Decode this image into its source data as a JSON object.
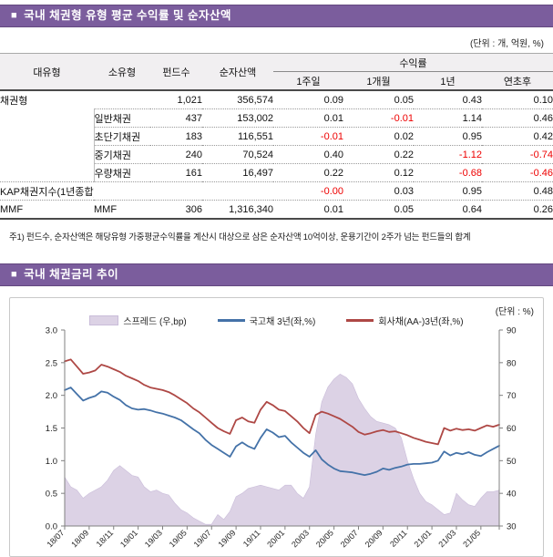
{
  "colors": {
    "banner_purple": "#7B5D9D",
    "negative_red": "#EE0000",
    "header_gray": "#F1EFF1",
    "area_fill": "#DCD2E5",
    "area_edge": "#C9BCD9",
    "line_blue": "#4472A8",
    "line_red": "#AE4845"
  },
  "section1": {
    "bullet": "■",
    "title": "국내 채권형 유형 평균 수익률 및 순자산액",
    "unit_label": "(단위 : 개, 억원, %)",
    "table": {
      "headers": {
        "col1": "대유형",
        "col2": "소유형",
        "col3": "펀드수",
        "col4": "순자산액",
        "group": "수익률",
        "sub": [
          "1주일",
          "1개월",
          "1년",
          "연초후"
        ]
      },
      "rows": [
        {
          "type": "채권형",
          "subtype": "",
          "funds": "1,021",
          "assets": "356,574",
          "returns": [
            "0.09",
            "0.05",
            "0.43",
            "0.10"
          ],
          "sep": "none",
          "indent": false
        },
        {
          "type": "",
          "subtype": "일반채권",
          "funds": "437",
          "assets": "153,002",
          "returns": [
            "0.01",
            "-0.01",
            "1.14",
            "0.46"
          ],
          "sep": "partial",
          "indent": true
        },
        {
          "type": "",
          "subtype": "초단기채권",
          "funds": "183",
          "assets": "116,551",
          "returns": [
            "-0.01",
            "0.02",
            "0.95",
            "0.42"
          ],
          "sep": "partial",
          "indent": true
        },
        {
          "type": "",
          "subtype": "중기채권",
          "funds": "240",
          "assets": "70,524",
          "returns": [
            "0.40",
            "0.22",
            "-1.12",
            "-0.74"
          ],
          "sep": "partial",
          "indent": true
        },
        {
          "type": "",
          "subtype": "우량채권",
          "funds": "161",
          "assets": "16,497",
          "returns": [
            "0.22",
            "0.12",
            "-0.68",
            "-0.46"
          ],
          "sep": "partial",
          "indent": true
        },
        {
          "type": "KAP채권지수(1년종합)",
          "subtype": "",
          "funds": "",
          "assets": "",
          "returns": [
            "-0.00",
            "0.03",
            "0.95",
            "0.48"
          ],
          "sep": "full",
          "indent": false
        },
        {
          "type": "MMF",
          "subtype": "MMF",
          "funds": "306",
          "assets": "1,316,340",
          "returns": [
            "0.01",
            "0.05",
            "0.64",
            "0.26"
          ],
          "sep": "full",
          "indent": false
        }
      ],
      "footnote": "주1) 펀드수, 순자산액은 해당유형 가중평균수익률을 계산시 대상으로 삼은 순자산액 10억이상, 운용기간이 2주가 넘는 펀드들의 합계"
    }
  },
  "section2": {
    "bullet": "■",
    "title": "국내 채권금리 추이",
    "unit_label": "(단위 : %)"
  },
  "chart_data": {
    "type": "line",
    "title": "국내 채권금리 추이",
    "left_axis": {
      "label": "%",
      "min": 0,
      "max": 3,
      "step": 0.5,
      "tick_labels": [
        "0.0",
        "0.5",
        "1.0",
        "1.5",
        "2.0",
        "2.5",
        "3.0"
      ]
    },
    "right_axis": {
      "label": "bp",
      "min": 30,
      "max": 90,
      "step": 10,
      "tick_labels": [
        "30",
        "40",
        "50",
        "60",
        "70",
        "80",
        "90"
      ]
    },
    "x_tick_labels": [
      "18/07",
      "18/09",
      "18/11",
      "19/01",
      "19/03",
      "19/05",
      "19/07",
      "19/09",
      "19/11",
      "20/01",
      "20/03",
      "20/05",
      "20/07",
      "20/09",
      "20/11",
      "21/01",
      "21/03",
      "21/05"
    ],
    "x_tick_months": [
      0,
      2,
      4,
      6,
      8,
      10,
      12,
      14,
      16,
      18,
      20,
      22,
      24,
      26,
      28,
      30,
      32,
      34
    ],
    "months_span": 35.5,
    "points_per_month": 2,
    "grid": false,
    "legend_position": "top",
    "series": [
      {
        "name": "스프레드 (우,bp)",
        "type": "area",
        "axis": "right",
        "color": "#DCD2E5",
        "edge": "#C9BCD9",
        "values": [
          45,
          42,
          41,
          38.5,
          40,
          41,
          42,
          44,
          47,
          48.5,
          47,
          45.5,
          45,
          42,
          40.5,
          41,
          40,
          39.5,
          37,
          35,
          34,
          32.5,
          31.5,
          30.5,
          30.5,
          33.5,
          32,
          34.5,
          39,
          40,
          41.5,
          42,
          42.5,
          42,
          41.5,
          41,
          42.5,
          42.5,
          40,
          38.5,
          42,
          58,
          68,
          72.5,
          75,
          76.5,
          75.5,
          73.5,
          69,
          66,
          63.5,
          62,
          61.5,
          61,
          60,
          57,
          50,
          44.5,
          40,
          37.5,
          36.5,
          35,
          33.5,
          34,
          40,
          38,
          36.5,
          36,
          38.5,
          40.5,
          40.5,
          41
        ]
      },
      {
        "name": "국고채 3년(좌,%)",
        "type": "line",
        "axis": "left",
        "color": "#4472A8",
        "values": [
          2.08,
          2.12,
          2.02,
          1.92,
          1.96,
          1.99,
          2.06,
          2.04,
          1.98,
          1.93,
          1.85,
          1.8,
          1.78,
          1.79,
          1.77,
          1.74,
          1.72,
          1.69,
          1.66,
          1.62,
          1.55,
          1.48,
          1.42,
          1.32,
          1.24,
          1.18,
          1.12,
          1.06,
          1.22,
          1.28,
          1.22,
          1.18,
          1.35,
          1.48,
          1.43,
          1.36,
          1.38,
          1.28,
          1.2,
          1.12,
          1.06,
          1.16,
          1.02,
          0.94,
          0.88,
          0.84,
          0.83,
          0.82,
          0.8,
          0.78,
          0.8,
          0.83,
          0.88,
          0.86,
          0.89,
          0.91,
          0.94,
          0.95,
          0.95,
          0.96,
          0.97,
          1.0,
          1.14,
          1.08,
          1.12,
          1.1,
          1.13,
          1.09,
          1.07,
          1.13,
          1.18,
          1.23
        ]
      },
      {
        "name": "회사채(AA-)3년(좌,%)",
        "type": "line",
        "axis": "left",
        "color": "#AE4845",
        "values": [
          2.52,
          2.55,
          2.44,
          2.33,
          2.35,
          2.38,
          2.47,
          2.44,
          2.4,
          2.36,
          2.3,
          2.26,
          2.22,
          2.16,
          2.12,
          2.1,
          2.08,
          2.05,
          2.0,
          1.94,
          1.88,
          1.8,
          1.74,
          1.66,
          1.58,
          1.5,
          1.45,
          1.41,
          1.62,
          1.66,
          1.6,
          1.58,
          1.78,
          1.9,
          1.85,
          1.78,
          1.76,
          1.68,
          1.6,
          1.5,
          1.42,
          1.7,
          1.75,
          1.72,
          1.68,
          1.64,
          1.58,
          1.52,
          1.44,
          1.4,
          1.42,
          1.45,
          1.47,
          1.44,
          1.45,
          1.42,
          1.39,
          1.35,
          1.32,
          1.29,
          1.27,
          1.25,
          1.5,
          1.46,
          1.49,
          1.47,
          1.48,
          1.46,
          1.5,
          1.54,
          1.52,
          1.55
        ]
      }
    ]
  }
}
